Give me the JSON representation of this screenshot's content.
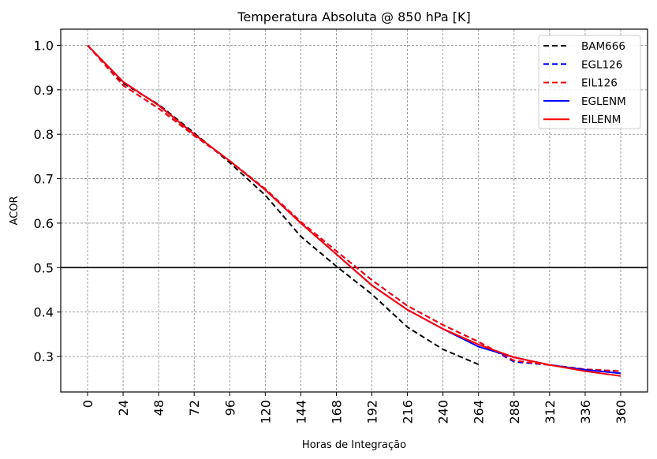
{
  "chart_data": {
    "type": "line",
    "title": "Temperatura Absoluta @ 850 hPa [K]",
    "xlabel": "Horas de Integração",
    "ylabel": "ACOR",
    "xlim": [
      -16,
      376
    ],
    "ylim": [
      0.22,
      1.04
    ],
    "x_ticks": [
      0,
      24,
      48,
      72,
      96,
      120,
      144,
      168,
      192,
      216,
      240,
      264,
      288,
      312,
      336,
      360
    ],
    "y_ticks": [
      0.3,
      0.4,
      0.5,
      0.6,
      0.7,
      0.8,
      0.9,
      1.0
    ],
    "y_tick_labels": [
      "0.3",
      "0.4",
      "0.5",
      "0.6",
      "0.7",
      "0.8",
      "0.9",
      "1.0"
    ],
    "grid": true,
    "reference_line": {
      "y": 0.5,
      "color": "#000000"
    },
    "legend_position": "top-right",
    "series": [
      {
        "name": "BAM666",
        "color": "#000000",
        "style": "dashed",
        "x": [
          0,
          24,
          48,
          72,
          96,
          120,
          144,
          168,
          192,
          216,
          240,
          264
        ],
        "values": [
          1.0,
          0.915,
          0.867,
          0.803,
          0.736,
          0.663,
          0.57,
          0.503,
          0.44,
          0.366,
          0.316,
          0.282
        ]
      },
      {
        "name": "EGL126",
        "color": "#0000ff",
        "style": "dashed",
        "x": [
          0,
          24,
          48,
          72,
          96,
          120,
          144,
          168,
          192,
          216,
          240,
          264,
          288,
          312,
          336,
          360
        ],
        "values": [
          1.0,
          0.91,
          0.858,
          0.797,
          0.74,
          0.677,
          0.603,
          0.537,
          0.472,
          0.414,
          0.371,
          0.333,
          0.288,
          0.281,
          0.271,
          0.267
        ]
      },
      {
        "name": "EIL126",
        "color": "#ff0000",
        "style": "dashed",
        "x": [
          0,
          24,
          48,
          72,
          96,
          120,
          144,
          168,
          192,
          216,
          240,
          264,
          288,
          312,
          336,
          360
        ],
        "values": [
          1.0,
          0.91,
          0.858,
          0.797,
          0.74,
          0.677,
          0.603,
          0.537,
          0.472,
          0.414,
          0.371,
          0.333,
          0.291,
          0.281,
          0.271,
          0.267
        ]
      },
      {
        "name": "EGLENM",
        "color": "#0000ff",
        "style": "solid",
        "x": [
          0,
          24,
          48,
          72,
          96,
          120,
          144,
          168,
          192,
          216,
          240,
          264,
          288,
          312,
          336,
          360
        ],
        "values": [
          1.0,
          0.918,
          0.865,
          0.8,
          0.74,
          0.675,
          0.6,
          0.53,
          0.46,
          0.405,
          0.362,
          0.322,
          0.298,
          0.281,
          0.27,
          0.262
        ]
      },
      {
        "name": "EILENM",
        "color": "#ff0000",
        "style": "solid",
        "x": [
          0,
          24,
          48,
          72,
          96,
          120,
          144,
          168,
          192,
          216,
          240,
          264,
          288,
          312,
          336,
          360
        ],
        "values": [
          1.0,
          0.918,
          0.865,
          0.8,
          0.74,
          0.675,
          0.6,
          0.53,
          0.46,
          0.405,
          0.362,
          0.327,
          0.298,
          0.281,
          0.267,
          0.256
        ]
      }
    ]
  }
}
